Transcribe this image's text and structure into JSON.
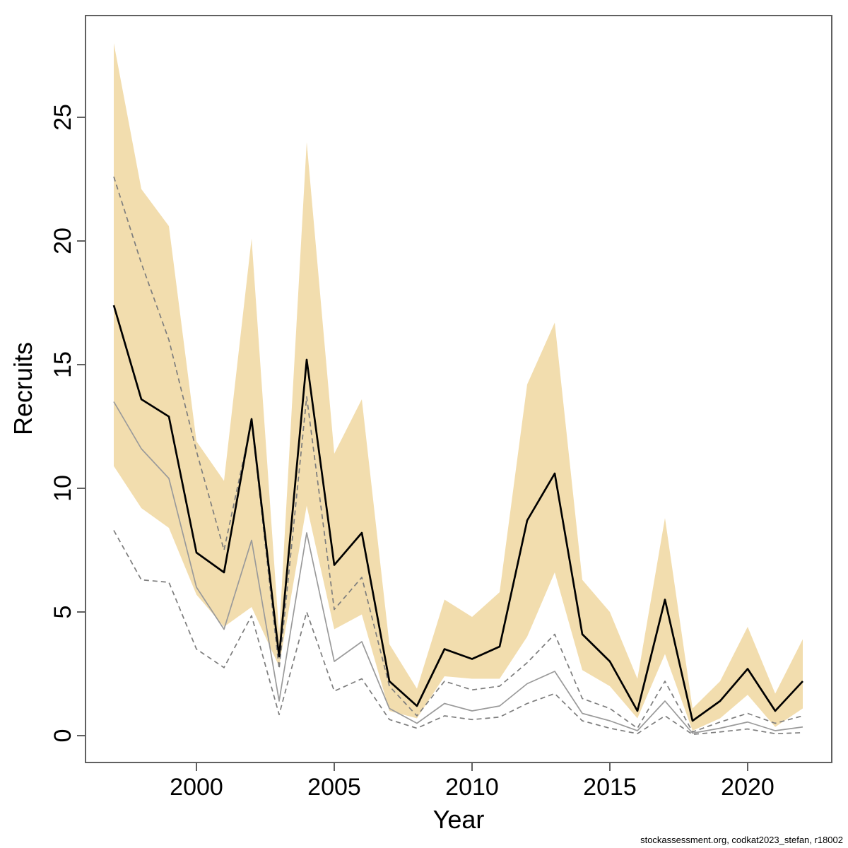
{
  "caption": "stockassessment.org, codkat2023_stefan, r18002",
  "chart_data": {
    "type": "line",
    "title": "",
    "xlabel": "Year",
    "ylabel": "Recruits",
    "grid": false,
    "legend": "none",
    "xlim": [
      1996,
      2023
    ],
    "ylim": [
      -1.1,
      29.1
    ],
    "x_ticks": [
      2000,
      2005,
      2010,
      2015,
      2020
    ],
    "y_ticks": [
      0,
      5,
      10,
      15,
      20,
      25
    ],
    "x": [
      1997,
      1998,
      1999,
      2000,
      2001,
      2002,
      2003,
      2004,
      2005,
      2006,
      2007,
      2008,
      2009,
      2010,
      2011,
      2012,
      2013,
      2014,
      2015,
      2016,
      2017,
      2018,
      2019,
      2020,
      2021,
      2022
    ],
    "band": {
      "label": "current-estimate-confidence-band",
      "color": "#f2ddae",
      "upper": [
        28.0,
        22.1,
        20.6,
        11.9,
        10.3,
        20.1,
        4.1,
        24.0,
        11.4,
        13.6,
        3.7,
        1.9,
        5.5,
        4.8,
        5.8,
        14.2,
        16.7,
        6.3,
        5.0,
        2.3,
        8.8,
        1.1,
        2.2,
        4.4,
        1.7,
        3.9
      ],
      "lower": [
        10.9,
        9.2,
        8.4,
        5.7,
        4.4,
        5.2,
        2.8,
        9.3,
        4.3,
        4.9,
        1.0,
        0.7,
        2.4,
        2.3,
        2.3,
        4.0,
        6.6,
        2.65,
        2.0,
        0.7,
        3.3,
        0.2,
        0.7,
        1.65,
        0.35,
        1.1
      ]
    },
    "series": [
      {
        "name": "current-estimate",
        "color": "#000000",
        "style": "solid",
        "width": 2.7,
        "values": [
          17.4,
          13.6,
          12.9,
          7.4,
          6.6,
          12.8,
          3.2,
          15.2,
          6.9,
          8.2,
          2.2,
          1.2,
          3.5,
          3.1,
          3.6,
          8.7,
          10.6,
          4.1,
          3.0,
          1.0,
          5.5,
          0.6,
          1.4,
          2.7,
          1.0,
          2.2
        ]
      },
      {
        "name": "previous-estimate",
        "color": "#9a9a9a",
        "style": "solid",
        "width": 1.7,
        "values": [
          13.5,
          11.6,
          10.4,
          6.0,
          4.3,
          7.9,
          1.4,
          8.2,
          3.0,
          3.8,
          1.1,
          0.5,
          1.3,
          1.0,
          1.2,
          2.1,
          2.6,
          0.9,
          0.6,
          0.2,
          1.4,
          0.1,
          0.3,
          0.55,
          0.2,
          0.35
        ]
      },
      {
        "name": "previous-upper-ci",
        "color": "#7d7d7d",
        "style": "dashed",
        "width": 1.7,
        "values": [
          22.6,
          19.1,
          16.0,
          11.5,
          7.5,
          12.7,
          2.7,
          13.7,
          5.1,
          6.4,
          2.0,
          0.8,
          2.2,
          1.85,
          2.0,
          2.95,
          4.1,
          1.5,
          1.1,
          0.3,
          2.2,
          0.15,
          0.55,
          0.9,
          0.5,
          0.8
        ]
      },
      {
        "name": "previous-lower-ci",
        "color": "#7d7d7d",
        "style": "dashed",
        "width": 1.7,
        "values": [
          8.3,
          6.3,
          6.2,
          3.5,
          2.75,
          4.85,
          0.85,
          5.0,
          1.8,
          2.3,
          0.65,
          0.3,
          0.8,
          0.65,
          0.75,
          1.3,
          1.7,
          0.6,
          0.3,
          0.08,
          0.8,
          0.05,
          0.15,
          0.27,
          0.08,
          0.12
        ]
      }
    ],
    "axis_color": "#606060",
    "text_color": "#000000"
  }
}
